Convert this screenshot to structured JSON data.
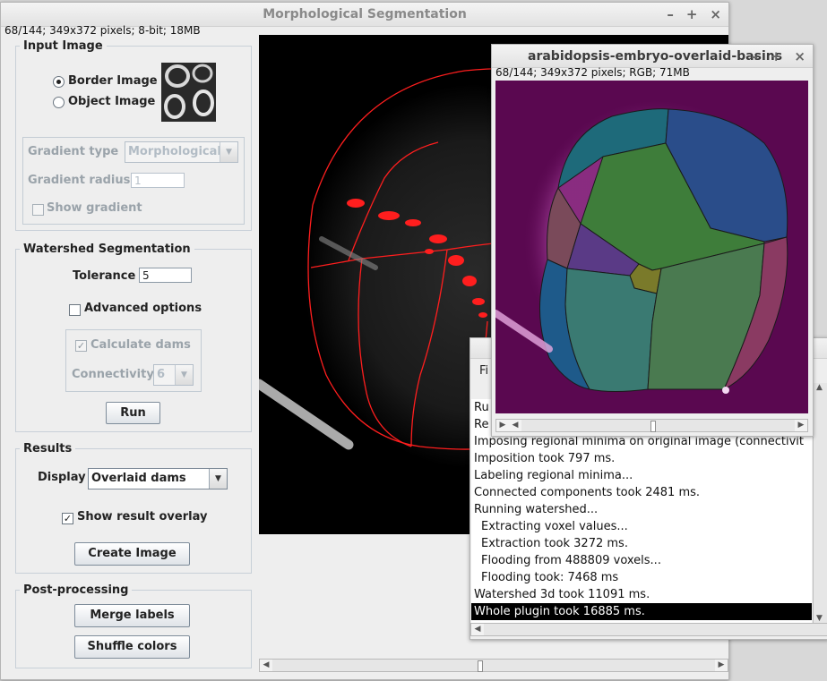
{
  "main_window": {
    "title": "Morphological Segmentation",
    "controls": [
      "–",
      "+",
      "×"
    ],
    "status": "68/144; 349x372 pixels; 8-bit; 18MB",
    "input_image": {
      "legend": "Input Image",
      "border_image_label": "Border Image",
      "object_image_label": "Object Image",
      "selected": "Border Image",
      "gradient_type_label": "Gradient type",
      "gradient_type_value": "Morphological",
      "gradient_radius_label": "Gradient radius",
      "gradient_radius_value": "1",
      "show_gradient_label": "Show gradient",
      "show_gradient_checked": false
    },
    "watershed": {
      "legend": "Watershed Segmentation",
      "tolerance_label": "Tolerance",
      "tolerance_value": "5",
      "advanced_label": "Advanced options",
      "advanced_checked": false,
      "calculate_dams_label": "Calculate dams",
      "calculate_dams_checked": true,
      "connectivity_label": "Connectivity",
      "connectivity_value": "6",
      "run_label": "Run"
    },
    "results": {
      "legend": "Results",
      "display_label": "Display",
      "display_value": "Overlaid dams",
      "show_overlay_label": "Show result overlay",
      "show_overlay_checked": true,
      "create_image_label": "Create Image"
    },
    "post_processing": {
      "legend": "Post-processing",
      "merge_label": "Merge labels",
      "shuffle_label": "Shuffle colors"
    }
  },
  "basins_window": {
    "title": "arabidopsis-embryo-overlaid-basins",
    "controls": [
      "–",
      "+",
      "×"
    ],
    "status": "68/144; 349x372 pixels; RGB; 71MB"
  },
  "log_window": {
    "menu_first": "Fi",
    "lines": [
      {
        "text": "Ru",
        "indent": false,
        "selected": false
      },
      {
        "text": "Re",
        "indent": false,
        "selected": false
      },
      {
        "text": "Imposing regional minima on original image (connectivit",
        "indent": false,
        "selected": false
      },
      {
        "text": "Imposition took 797 ms.",
        "indent": false,
        "selected": false
      },
      {
        "text": "Labeling regional minima...",
        "indent": false,
        "selected": false
      },
      {
        "text": "Connected components took 2481 ms.",
        "indent": false,
        "selected": false
      },
      {
        "text": "Running watershed...",
        "indent": false,
        "selected": false
      },
      {
        "text": "Extracting voxel values...",
        "indent": true,
        "selected": false
      },
      {
        "text": "Extraction took 3272 ms.",
        "indent": true,
        "selected": false
      },
      {
        "text": "Flooding from 488809 voxels...",
        "indent": true,
        "selected": false
      },
      {
        "text": "Flooding took: 7468 ms",
        "indent": true,
        "selected": false
      },
      {
        "text": "Watershed 3d took 11091 ms.",
        "indent": false,
        "selected": false
      },
      {
        "text": "Whole plugin took 16885 ms.",
        "indent": false,
        "selected": true
      }
    ]
  },
  "colors": {
    "dam_red": "#ff1e1e",
    "basin_background": "#5a0850",
    "selection": "#000000"
  }
}
